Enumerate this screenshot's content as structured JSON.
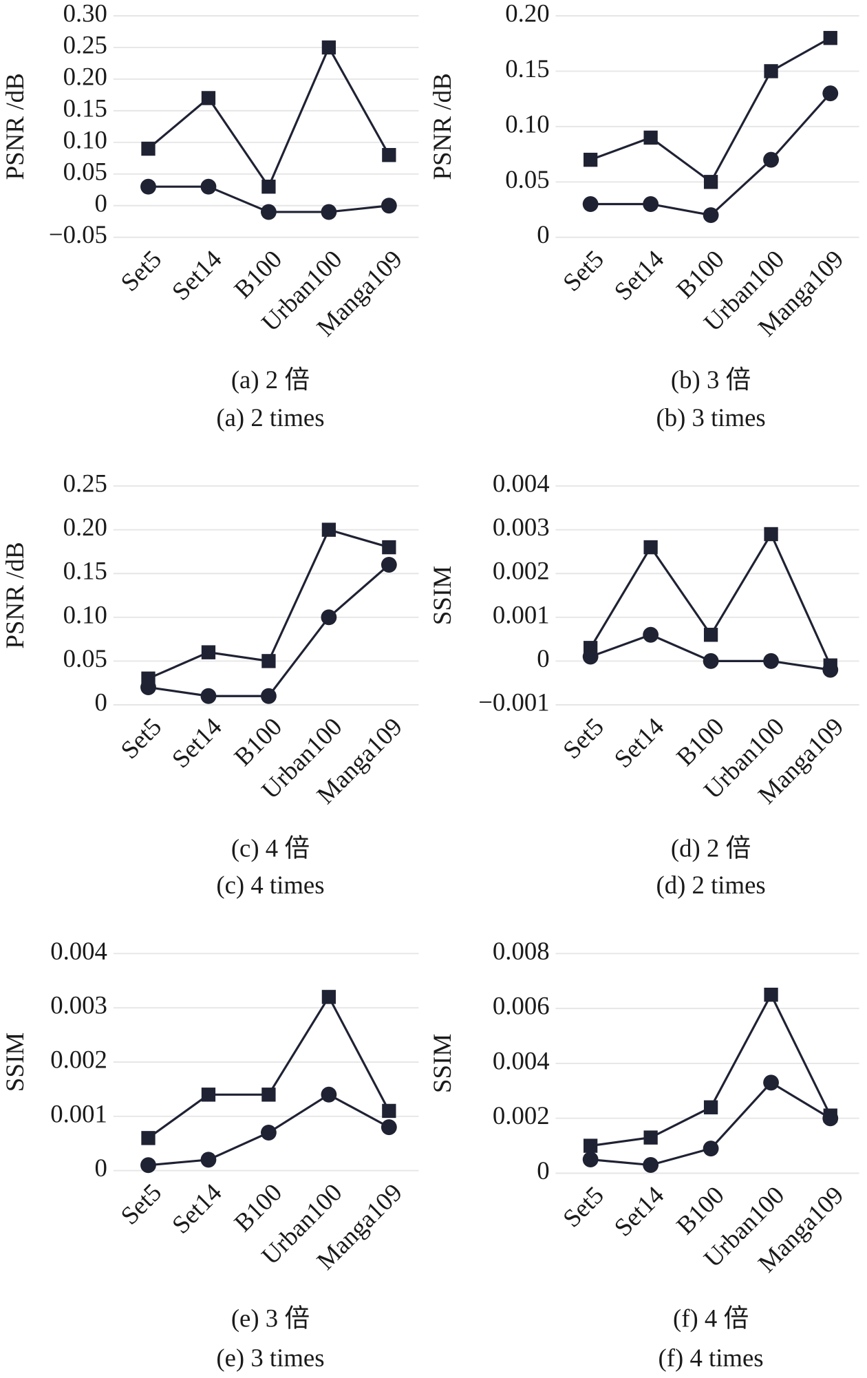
{
  "chart_data": [
    {
      "type": "line",
      "ylabel": "PSNR /dB",
      "captions": [
        "(a) 2 倍",
        "(a) 2 times"
      ],
      "categories": [
        "Set5",
        "Set14",
        "B100",
        "Urban100",
        "Manga109"
      ],
      "ylim": [
        -0.05,
        0.3
      ],
      "yticks": [
        {
          "value": -0.05,
          "label": "−0.05"
        },
        0,
        0.05,
        {
          "value": 0.1,
          "label": "0.10"
        },
        0.15,
        {
          "value": 0.2,
          "label": "0.20"
        },
        0.25,
        {
          "value": 0.3,
          "label": "0.30"
        }
      ],
      "grid": true,
      "series": [
        {
          "marker": "square",
          "color": "#1f2233",
          "values": [
            0.09,
            0.17,
            0.03,
            0.25,
            0.08
          ]
        },
        {
          "marker": "circle",
          "color": "#1f2233",
          "values": [
            0.03,
            0.03,
            -0.01,
            -0.01,
            0
          ]
        }
      ]
    },
    {
      "type": "line",
      "ylabel": "PSNR /dB",
      "captions": [
        "(b) 3 倍",
        "(b) 3 times"
      ],
      "categories": [
        "Set5",
        "Set14",
        "B100",
        "Urban100",
        "Manga109"
      ],
      "ylim": [
        0,
        0.2
      ],
      "yticks": [
        0,
        0.05,
        {
          "value": 0.1,
          "label": "0.10"
        },
        0.15,
        {
          "value": 0.2,
          "label": "0.20"
        }
      ],
      "grid": true,
      "series": [
        {
          "marker": "square",
          "color": "#1f2233",
          "values": [
            0.07,
            0.09,
            0.05,
            0.15,
            0.18
          ]
        },
        {
          "marker": "circle",
          "color": "#1f2233",
          "values": [
            0.03,
            0.03,
            0.02,
            0.07,
            0.13
          ]
        }
      ]
    },
    {
      "type": "line",
      "ylabel": "PSNR /dB",
      "captions": [
        "(c) 4 倍",
        "(c) 4 times"
      ],
      "categories": [
        "Set5",
        "Set14",
        "B100",
        "Urban100",
        "Manga109"
      ],
      "ylim": [
        0,
        0.25
      ],
      "yticks": [
        0,
        0.05,
        {
          "value": 0.1,
          "label": "0.10"
        },
        0.15,
        {
          "value": 0.2,
          "label": "0.20"
        },
        0.25
      ],
      "grid": true,
      "series": [
        {
          "marker": "square",
          "color": "#1f2233",
          "values": [
            0.03,
            0.06,
            0.05,
            0.2,
            0.18
          ]
        },
        {
          "marker": "circle",
          "color": "#1f2233",
          "values": [
            0.02,
            0.01,
            0.01,
            0.1,
            0.16
          ]
        }
      ]
    },
    {
      "type": "line",
      "ylabel": "SSIM",
      "captions": [
        "(d) 2 倍",
        "(d) 2 times"
      ],
      "categories": [
        "Set5",
        "Set14",
        "B100",
        "Urban100",
        "Manga109"
      ],
      "ylim": [
        -0.001,
        0.004
      ],
      "yticks": [
        {
          "value": -0.001,
          "label": "−0.001"
        },
        0,
        0.001,
        0.002,
        0.003,
        0.004
      ],
      "grid": true,
      "series": [
        {
          "marker": "square",
          "color": "#1f2233",
          "values": [
            0.0003,
            0.0026,
            0.0006,
            0.0029,
            -0.0001
          ]
        },
        {
          "marker": "circle",
          "color": "#1f2233",
          "values": [
            0.0001,
            0.0006,
            0,
            0,
            -0.0002
          ]
        }
      ]
    },
    {
      "type": "line",
      "ylabel": "SSIM",
      "captions": [
        "(e) 3 倍",
        "(e) 3 times"
      ],
      "categories": [
        "Set5",
        "Set14",
        "B100",
        "Urban100",
        "Manga109"
      ],
      "ylim": [
        0,
        0.004
      ],
      "yticks": [
        0,
        0.001,
        0.002,
        0.003,
        0.004
      ],
      "grid": true,
      "series": [
        {
          "marker": "square",
          "color": "#1f2233",
          "values": [
            0.0006,
            0.0014,
            0.0014,
            0.0032,
            0.0011
          ]
        },
        {
          "marker": "circle",
          "color": "#1f2233",
          "values": [
            0.0001,
            0.0002,
            0.0007,
            0.0014,
            0.0008
          ]
        }
      ]
    },
    {
      "type": "line",
      "ylabel": "SSIM",
      "captions": [
        "(f) 4 倍",
        "(f) 4 times"
      ],
      "categories": [
        "Set5",
        "Set14",
        "B100",
        "Urban100",
        "Manga109"
      ],
      "ylim": [
        0,
        0.008
      ],
      "yticks": [
        0,
        0.002,
        0.004,
        0.006,
        0.008
      ],
      "grid": true,
      "series": [
        {
          "marker": "square",
          "color": "#1f2233",
          "values": [
            0.001,
            0.0013,
            0.0024,
            0.0065,
            0.0021
          ]
        },
        {
          "marker": "circle",
          "color": "#1f2233",
          "values": [
            0.0005,
            0.0003,
            0.0009,
            0.0033,
            0.002
          ]
        }
      ]
    }
  ]
}
